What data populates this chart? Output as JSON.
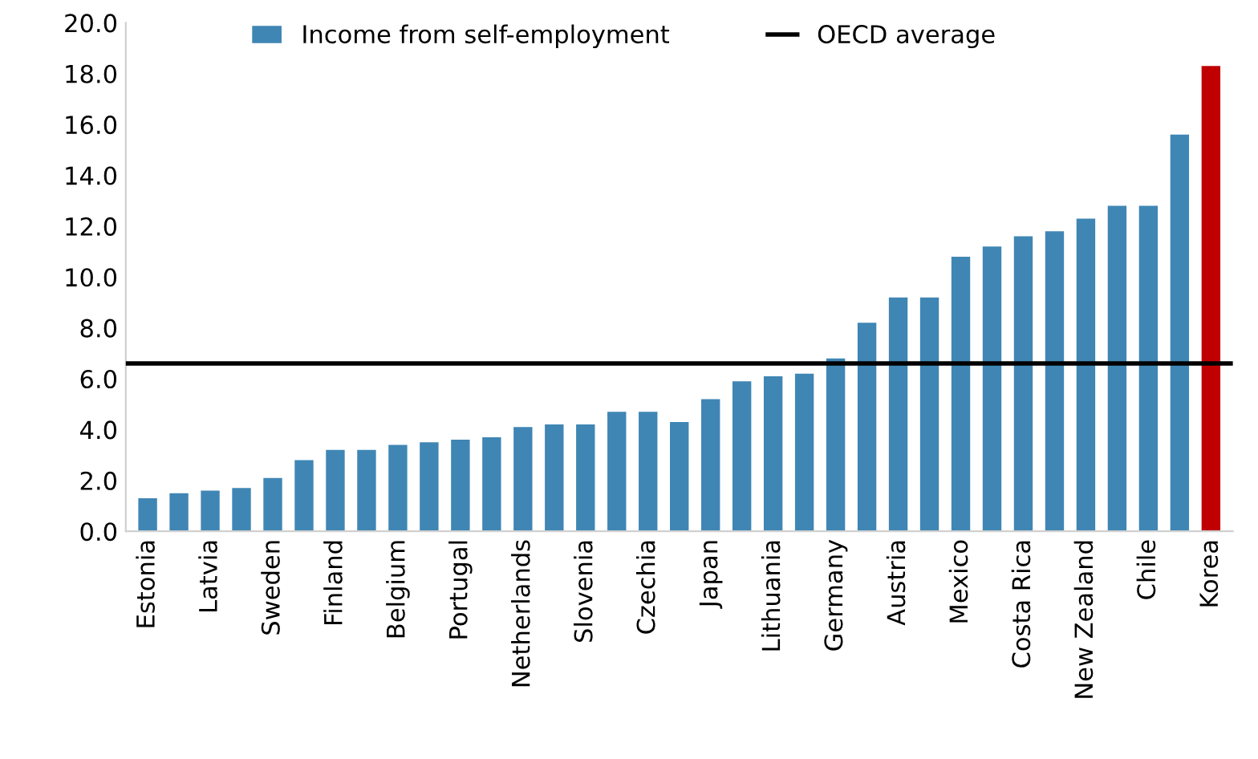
{
  "chart_data": {
    "type": "bar",
    "categories": [
      "Estonia",
      null,
      "Latvia",
      null,
      "Sweden",
      null,
      "Finland",
      null,
      "Belgium",
      null,
      "Portugal",
      null,
      "Netherlands",
      null,
      "Slovenia",
      null,
      "Czechia",
      null,
      "Japan",
      null,
      "Lithuania",
      null,
      "Germany",
      null,
      "Austria",
      null,
      "Mexico",
      null,
      "Costa Rica",
      null,
      "New Zealand",
      null,
      "Chile",
      null,
      "Korea"
    ],
    "series": [
      {
        "name": "Income from self-employment",
        "color": "#3f86b4",
        "values": [
          1.3,
          1.5,
          1.6,
          1.7,
          2.1,
          2.8,
          3.2,
          3.2,
          3.4,
          3.5,
          3.6,
          3.7,
          4.1,
          4.2,
          4.2,
          4.7,
          4.7,
          4.3,
          5.2,
          5.9,
          6.1,
          6.2,
          6.8,
          8.2,
          9.2,
          9.2,
          10.8,
          11.2,
          11.6,
          11.8,
          12.3,
          12.8,
          12.8,
          15.6,
          18.3
        ],
        "colors": [
          "#3f86b4",
          "#3f86b4",
          "#3f86b4",
          "#3f86b4",
          "#3f86b4",
          "#3f86b4",
          "#3f86b4",
          "#3f86b4",
          "#3f86b4",
          "#3f86b4",
          "#3f86b4",
          "#3f86b4",
          "#3f86b4",
          "#3f86b4",
          "#3f86b4",
          "#3f86b4",
          "#3f86b4",
          "#3f86b4",
          "#3f86b4",
          "#3f86b4",
          "#3f86b4",
          "#3f86b4",
          "#3f86b4",
          "#3f86b4",
          "#3f86b4",
          "#3f86b4",
          "#3f86b4",
          "#3f86b4",
          "#3f86b4",
          "#3f86b4",
          "#3f86b4",
          "#3f86b4",
          "#3f86b4",
          "#3f86b4",
          "#c00000"
        ]
      }
    ],
    "ref_lines": [
      {
        "axis": "y",
        "value": 6.6,
        "label": "OECD average",
        "color": "#000000",
        "line_style": "solid"
      }
    ],
    "ylim": [
      0,
      20
    ],
    "yticks": [
      {
        "value": 0,
        "label": "0.0"
      },
      {
        "value": 2,
        "label": "2.0"
      },
      {
        "value": 4,
        "label": "4.0"
      },
      {
        "value": 6,
        "label": "6.0"
      },
      {
        "value": 8,
        "label": "8.0"
      },
      {
        "value": 10,
        "label": "10.0"
      },
      {
        "value": 12,
        "label": "12.0"
      },
      {
        "value": 14,
        "label": "14.0"
      },
      {
        "value": 16,
        "label": "16.0"
      },
      {
        "value": 18,
        "label": "18.0"
      },
      {
        "value": 20,
        "label": "20.0"
      }
    ],
    "grid": false,
    "legend": "top"
  }
}
